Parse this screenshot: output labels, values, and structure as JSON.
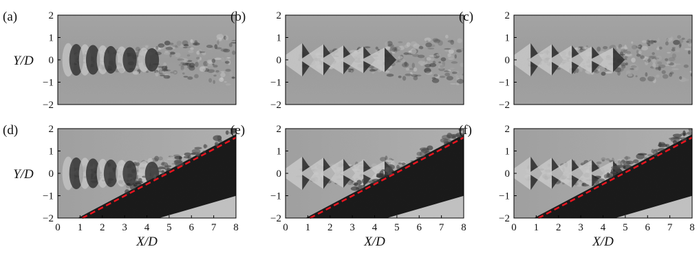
{
  "figure": {
    "panels": [
      {
        "label": "(a)",
        "row": 0,
        "col": 0,
        "wall": false,
        "diamond": false
      },
      {
        "label": "(b)",
        "row": 0,
        "col": 1,
        "wall": false,
        "diamond": true
      },
      {
        "label": "(c)",
        "row": 0,
        "col": 2,
        "wall": false,
        "diamond": true
      },
      {
        "label": "(d)",
        "row": 1,
        "col": 0,
        "wall": true,
        "diamond": false
      },
      {
        "label": "(e)",
        "row": 1,
        "col": 1,
        "wall": true,
        "diamond": true
      },
      {
        "label": "(f)",
        "row": 1,
        "col": 2,
        "wall": true,
        "diamond": true
      }
    ],
    "y_axis_label": "Y/D",
    "x_axis_label": "X/D",
    "y_ticks": [
      "2",
      "1",
      "0",
      "−1",
      "−2"
    ],
    "x_ticks": [
      "0",
      "1",
      "2",
      "3",
      "4",
      "5",
      "6",
      "7",
      "8"
    ],
    "x_range": [
      0,
      8
    ],
    "y_range": [
      -2,
      2
    ],
    "dashed_line_color": "#e8141e",
    "dashed_line": {
      "x": [
        1.1,
        8.0
      ],
      "y": [
        -2.0,
        1.6
      ]
    }
  }
}
